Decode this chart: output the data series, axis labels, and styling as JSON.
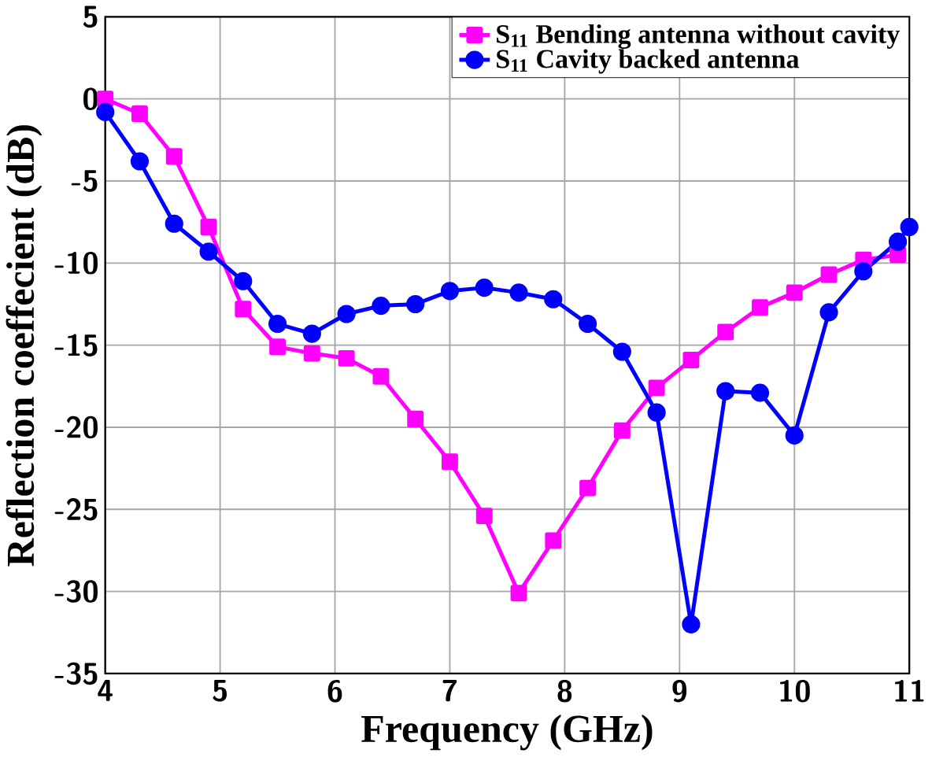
{
  "chart_data": {
    "type": "line",
    "xlabel": "Frequency (GHz)",
    "ylabel": "Reflection coeffecient (dB)",
    "x": [
      4.0,
      4.3,
      4.6,
      4.9,
      5.2,
      5.5,
      5.8,
      6.1,
      6.4,
      6.7,
      7.0,
      7.3,
      7.6,
      7.9,
      8.2,
      8.5,
      8.8,
      9.1,
      9.4,
      9.7,
      10.0,
      10.3,
      10.6,
      10.9
    ],
    "series": [
      {
        "name": "S$_{11}$ Bending antenna without cavity",
        "color": "#ff00ff",
        "marker": "square",
        "values": [
          0,
          -0.9,
          -3.5,
          -7.8,
          -12.8,
          -15.1,
          -15.5,
          -15.8,
          -16.9,
          -19.5,
          -22.1,
          -25.4,
          -30.1,
          -26.9,
          -23.7,
          -20.2,
          -17.6,
          -15.9,
          -14.2,
          -12.7,
          -11.8,
          -10.7,
          -9.8,
          -9.5
        ]
      },
      {
        "name": "S$_{11}$ Cavity backed antenna",
        "color": "#0000ff",
        "marker": "circle",
        "x": [
          4.0,
          4.3,
          4.6,
          4.9,
          5.2,
          5.5,
          5.8,
          6.1,
          6.4,
          6.7,
          7.0,
          7.3,
          7.6,
          7.9,
          8.2,
          8.5,
          8.8,
          9.1,
          9.4,
          9.7,
          10.0,
          10.3,
          10.6,
          10.9,
          11.0
        ],
        "values": [
          -0.8,
          -3.8,
          -7.6,
          -9.3,
          -11.1,
          -13.7,
          -14.3,
          -13.1,
          -12.6,
          -12.5,
          -11.7,
          -11.5,
          -11.8,
          -12.2,
          -13.7,
          -15.4,
          -19.1,
          -32.0,
          -17.8,
          -17.9,
          -20.5,
          -13.0,
          -10.5,
          -8.7,
          -7.8
        ]
      }
    ],
    "xlim": [
      4,
      11
    ],
    "ylim": [
      -35,
      5
    ],
    "xticks": [
      4,
      5,
      6,
      7,
      8,
      9,
      10,
      11
    ],
    "yticks": [
      -35,
      -30,
      -25,
      -20,
      -15,
      -10,
      -5,
      0,
      5
    ],
    "grid": true,
    "legend": "top right",
    "line_style": "solid"
  }
}
